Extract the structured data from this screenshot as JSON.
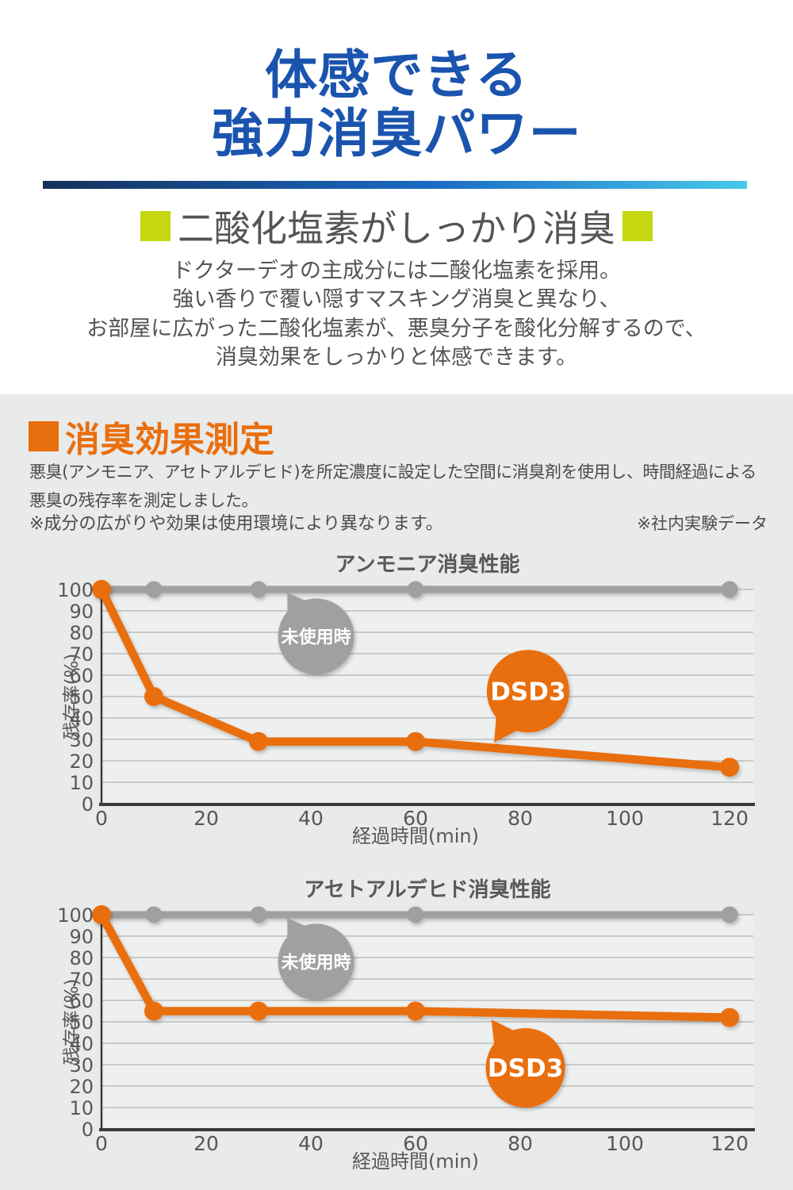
{
  "page": {
    "title_lines": [
      "体感できる",
      "強力消臭パワー"
    ],
    "subheading": "二酸化塩素がしっかり消臭",
    "intro_lines": [
      "ドクターデオの主成分には二酸化塩素を採用。",
      "強い香りで覆い隠すマスキング消臭と異なり、",
      "お部屋に広がった二酸化塩素が、悪臭分子を酸化分解するので、",
      "消臭効果をしっかりと体感できます。"
    ],
    "section": {
      "title": "消臭効果測定",
      "desc_lines": [
        "悪臭(アンモニア、アセトアルデヒド)を所定濃度に設定した空間に消臭剤を使用し、時間経過による",
        "悪臭の残存率を測定しました。"
      ],
      "note_left": "※成分の広がりや効果は使用環境により異なります。",
      "note_right": "※社内実験データ"
    },
    "colors": {
      "blue": "#1b54ae",
      "grad_a": "#14305b",
      "grad_b": "#1a6ac4",
      "grad_c": "#47c9ea",
      "green": "#c5d70e",
      "orange": "#e96e0d",
      "text": "#555353",
      "bg": "#e9eaea",
      "chart_gray": "#9fa0a0"
    }
  },
  "chart_data": [
    {
      "type": "line",
      "title": "アンモニア消臭性能",
      "xlabel": "経過時間(min)",
      "ylabel": "残存率(%)",
      "x": [
        0,
        10,
        30,
        60,
        120
      ],
      "series": [
        {
          "key": "untreated",
          "name": "未使用時",
          "color": "#9fa0a0",
          "values": [
            100,
            100,
            100,
            100,
            100
          ],
          "lw": 9,
          "marker": 10.5
        },
        {
          "key": "dsd3",
          "name": "DSD3",
          "color": "#e96e0d",
          "values": [
            100,
            50,
            29,
            29,
            17
          ],
          "lw": 10.5,
          "marker": 12
        }
      ],
      "xticks": [
        0,
        20,
        40,
        60,
        80,
        100,
        120
      ],
      "xlim": [
        0,
        120
      ],
      "ylim": [
        0,
        100
      ],
      "ytick_step": 10,
      "grid": true,
      "legend": "balloon-callouts",
      "annotations": [
        {
          "key": "untreated",
          "text": "未使用時",
          "color": "#9fa0a0",
          "cx_min": 41,
          "cy_pct": 78,
          "tip_min": 35.5,
          "tip_pct": 98.5,
          "r": 48,
          "font": 22
        },
        {
          "key": "dsd3",
          "text": "DSD3",
          "color": "#e96e0d",
          "cx_min": 81.5,
          "cy_pct": 52.5,
          "tip_min": 75,
          "tip_pct": 28.5,
          "r": 52,
          "font": 31
        }
      ]
    },
    {
      "type": "line",
      "title": "アセトアルデヒド消臭性能",
      "xlabel": "経過時間(min)",
      "ylabel": "残存率(%)",
      "x": [
        0,
        10,
        30,
        60,
        120
      ],
      "series": [
        {
          "key": "untreated",
          "name": "未使用時",
          "color": "#9fa0a0",
          "values": [
            100,
            100,
            100,
            100,
            100
          ],
          "lw": 9,
          "marker": 10.5
        },
        {
          "key": "dsd3",
          "name": "DSD3",
          "color": "#e96e0d",
          "values": [
            100,
            55,
            55,
            55,
            52
          ],
          "lw": 10.5,
          "marker": 12
        }
      ],
      "xticks": [
        0,
        20,
        40,
        60,
        80,
        100,
        120
      ],
      "xlim": [
        0,
        120
      ],
      "ylim": [
        0,
        100
      ],
      "ytick_step": 10,
      "grid": true,
      "legend": "balloon-callouts",
      "annotations": [
        {
          "key": "untreated",
          "text": "未使用時",
          "color": "#9fa0a0",
          "cx_min": 41,
          "cy_pct": 78,
          "tip_min": 35.5,
          "tip_pct": 98.5,
          "r": 48,
          "font": 22
        },
        {
          "key": "dsd3",
          "text": "DSD3",
          "color": "#e96e0d",
          "cx_min": 81,
          "cy_pct": 28.5,
          "tip_min": 74.5,
          "tip_pct": 51,
          "r": 50,
          "font": 31
        }
      ]
    }
  ]
}
